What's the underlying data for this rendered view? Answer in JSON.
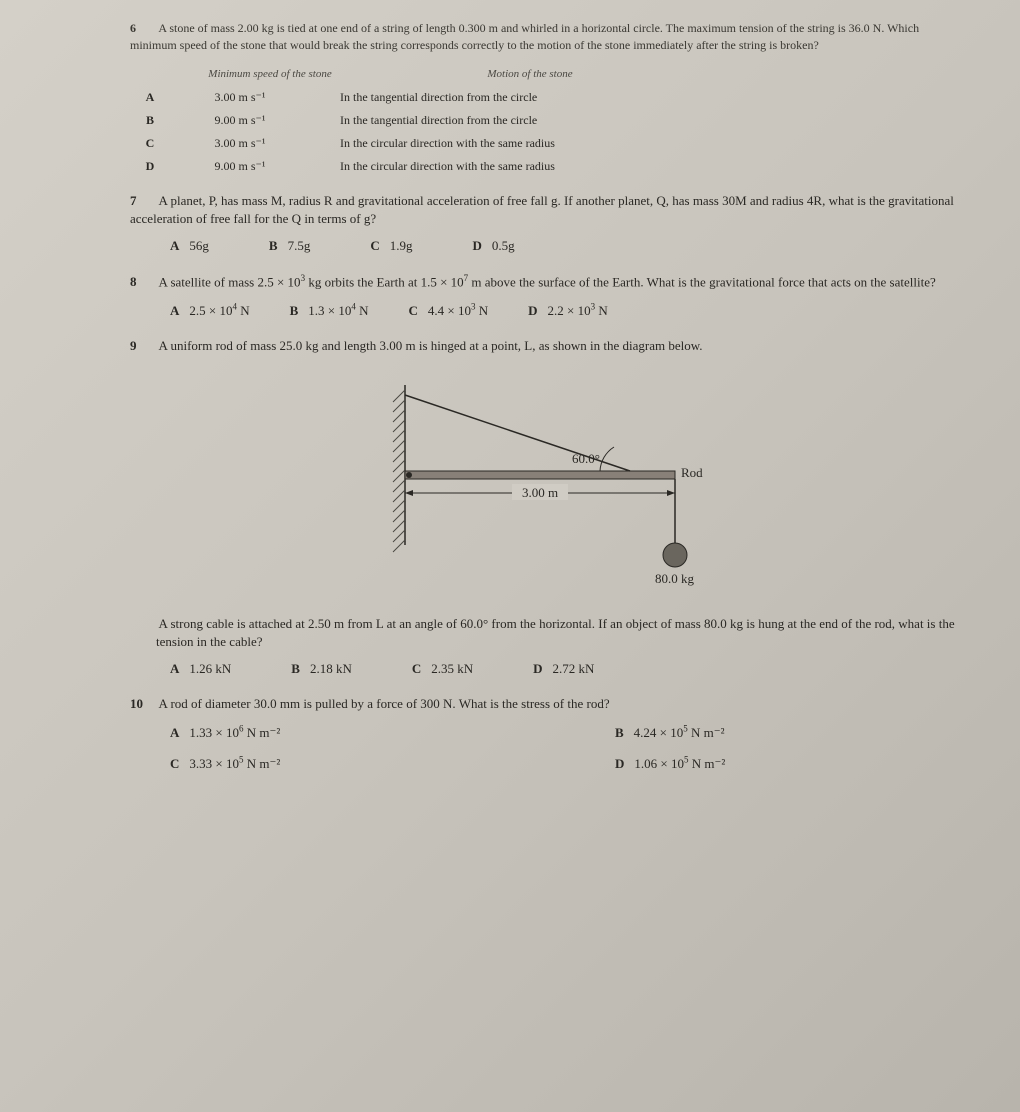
{
  "q6": {
    "number": "6",
    "text": "A stone of mass 2.00 kg is tied at one end of a string of length 0.300 m and whirled in a horizontal circle. The maximum tension of the string is 36.0 N. Which minimum speed of the stone that would break the string corresponds correctly to the motion of the stone immediately after the string is broken?",
    "header_speed": "Minimum speed of the stone",
    "header_motion": "Motion of the stone",
    "rows": [
      {
        "letter": "A",
        "speed": "3.00 m s⁻¹",
        "motion": "In the tangential direction from the circle"
      },
      {
        "letter": "B",
        "speed": "9.00 m s⁻¹",
        "motion": "In the tangential direction from the circle"
      },
      {
        "letter": "C",
        "speed": "3.00 m s⁻¹",
        "motion": "In the circular direction with the same radius"
      },
      {
        "letter": "D",
        "speed": "9.00 m s⁻¹",
        "motion": "In the circular direction with the same radius"
      }
    ]
  },
  "q7": {
    "number": "7",
    "text": "A planet, P, has mass M, radius R and gravitational acceleration of free fall g. If another planet, Q, has mass 30M and radius 4R, what is the gravitational acceleration of free fall for the Q in terms of g?",
    "options": [
      {
        "letter": "A",
        "value": "56g"
      },
      {
        "letter": "B",
        "value": "7.5g"
      },
      {
        "letter": "C",
        "value": "1.9g"
      },
      {
        "letter": "D",
        "value": "0.5g"
      }
    ]
  },
  "q8": {
    "number": "8",
    "text_part1": "A satellite of mass 2.5 × 10",
    "text_exp1": "3",
    "text_part2": " kg orbits the Earth at 1.5 × 10",
    "text_exp2": "7",
    "text_part3": " m above the surface of the Earth. What is the gravitational force that acts on the satellite?",
    "options": [
      {
        "letter": "A",
        "pre": "2.5 × 10",
        "exp": "4",
        "post": " N"
      },
      {
        "letter": "B",
        "pre": "1.3 × 10",
        "exp": "4",
        "post": " N"
      },
      {
        "letter": "C",
        "pre": "4.4 × 10",
        "exp": "3",
        "post": " N"
      },
      {
        "letter": "D",
        "pre": "2.2 × 10",
        "exp": "3",
        "post": " N"
      }
    ]
  },
  "q9": {
    "number": "9",
    "text": "A uniform rod of mass 25.0 kg and length 3.00 m is hinged at a point, L, as shown in the diagram below.",
    "diagram": {
      "angle_label": "60.0°",
      "rod_label": "Rod",
      "length_label": "3.00 m",
      "mass_label": "80.0 kg",
      "colors": {
        "line": "#2a2824",
        "hatch": "#4a4842",
        "fill": "#d0ccc4"
      }
    },
    "text2": "A strong cable is attached at 2.50 m from L at an angle of 60.0° from the horizontal. If an object of mass 80.0 kg is hung at the end of the rod, what is the tension in the cable?",
    "options": [
      {
        "letter": "A",
        "value": "1.26 kN"
      },
      {
        "letter": "B",
        "value": "2.18 kN"
      },
      {
        "letter": "C",
        "value": "2.35 kN"
      },
      {
        "letter": "D",
        "value": "2.72 kN"
      }
    ]
  },
  "q10": {
    "number": "10",
    "text": "A rod of diameter 30.0 mm is pulled by a force of 300 N. What is the stress of the rod?",
    "options": [
      {
        "letter": "A",
        "pre": "1.33 × 10",
        "exp": "6",
        "post": " N m⁻²"
      },
      {
        "letter": "B",
        "pre": "4.24 × 10",
        "exp": "5",
        "post": " N m⁻²"
      },
      {
        "letter": "C",
        "pre": "3.33 × 10",
        "exp": "5",
        "post": " N m⁻²"
      },
      {
        "letter": "D",
        "pre": "1.06 × 10",
        "exp": "5",
        "post": " N m⁻²"
      }
    ]
  }
}
